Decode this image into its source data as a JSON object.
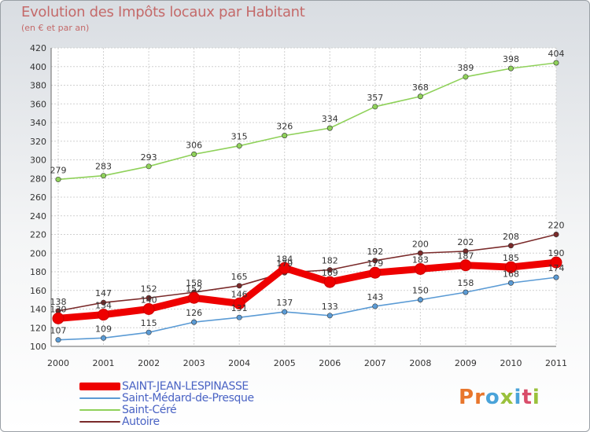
{
  "header": {
    "title": "Evolution des Impôts locaux par Habitant",
    "subtitle": "(en € et par an)"
  },
  "logo": {
    "text": "Proxiti",
    "letter_colors": [
      "#e8762c",
      "#e8762c",
      "#4aa3d9",
      "#9ac13c",
      "#4aa3d9",
      "#d94d6a",
      "#9ac13c"
    ]
  },
  "chart_data": {
    "type": "line",
    "x": [
      "2000",
      "2001",
      "2002",
      "2003",
      "2004",
      "2005",
      "2006",
      "2007",
      "2008",
      "2009",
      "2010",
      "2011"
    ],
    "ylim": [
      100,
      420
    ],
    "yticks": [
      100,
      120,
      140,
      160,
      180,
      200,
      220,
      240,
      260,
      280,
      300,
      320,
      340,
      360,
      380,
      400,
      420
    ],
    "grid": true,
    "series": [
      {
        "name": "SAINT-JEAN-LESPINASSE",
        "color": "#ee0000",
        "values": [
          130,
          134,
          140,
          152,
          146,
          184,
          169,
          179,
          183,
          187,
          185,
          190
        ],
        "data_labels": [
          "130",
          "134",
          "140",
          "152",
          "146",
          "184",
          "169",
          "179",
          "183",
          "187",
          "185",
          "190"
        ]
      },
      {
        "name": "Saint-Médard-de-Presque",
        "color": "#5b9bd5",
        "values": [
          107,
          109,
          115,
          126,
          131,
          137,
          133,
          143,
          150,
          158,
          168,
          174
        ],
        "data_labels": [
          "107",
          "109",
          "115",
          "126",
          "131",
          "137",
          "133",
          "143",
          "150",
          "158",
          "168",
          "174"
        ]
      },
      {
        "name": "Saint-Céré",
        "color": "#8fd15a",
        "values": [
          279,
          283,
          293,
          306,
          315,
          326,
          334,
          357,
          368,
          389,
          398,
          404
        ],
        "data_labels": [
          "279",
          "283",
          "293",
          "306",
          "315",
          "326",
          "334",
          "357",
          "368",
          "389",
          "398",
          "404"
        ]
      },
      {
        "name": "Autoire",
        "color": "#7a2a2a",
        "values": [
          138,
          147,
          152,
          158,
          165,
          179,
          182,
          192,
          200,
          202,
          208,
          220
        ],
        "data_labels": [
          "138",
          "147",
          "152",
          "158",
          "165",
          "179",
          "182",
          "192",
          "200",
          "202",
          "208",
          "220"
        ]
      }
    ]
  }
}
